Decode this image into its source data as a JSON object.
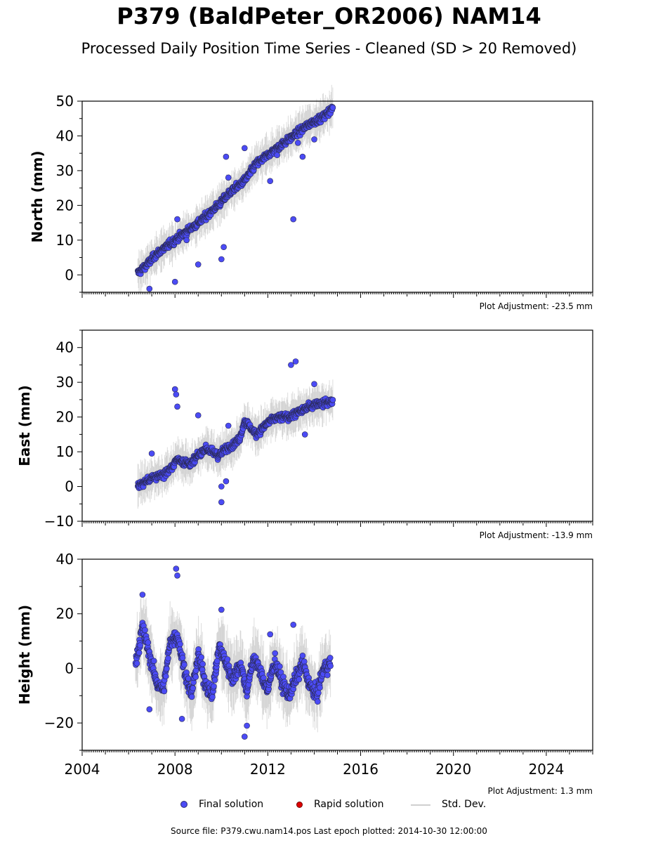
{
  "title": "P379 (BaldPeter_OR2006) NAM14",
  "subtitle": "Processed Daily Position Time Series - Cleaned (SD > 20 Removed)",
  "legend": {
    "final": "Final solution",
    "rapid": "Rapid solution",
    "std": "Std. Dev."
  },
  "source_line": "Source file: P379.cwu.nam14.pos  Last epoch plotted: 2014-10-30 12:00:00",
  "colors": {
    "final": "#4b4bf5",
    "rapid": "#e00000",
    "std": "#c8c8c8"
  },
  "chart_data": [
    {
      "type": "scatter",
      "ylabel": "North (mm)",
      "adjustment_label": "Plot Adjustment: -23.5 mm",
      "xlim": [
        2004,
        2026
      ],
      "ylim": [
        -5,
        50
      ],
      "yticks": [
        0,
        10,
        20,
        30,
        40,
        50
      ],
      "xticks": [
        2004,
        2008,
        2012,
        2016,
        2020,
        2024
      ],
      "series": [
        {
          "name": "Final solution",
          "x": [
            2006.4,
            2006.8,
            2007.2,
            2007.6,
            2008.0,
            2008.4,
            2008.8,
            2009.2,
            2009.6,
            2010.0,
            2010.4,
            2010.8,
            2011.1,
            2011.5,
            2011.9,
            2012.3,
            2012.7,
            2013.1,
            2013.5,
            2013.9,
            2014.3,
            2014.8
          ],
          "y": [
            0.5,
            3,
            6,
            8,
            10,
            12,
            14,
            16,
            18.5,
            21,
            24,
            26,
            28,
            32,
            34,
            36,
            38,
            40,
            42,
            44,
            45,
            48
          ]
        }
      ],
      "outliers": {
        "x": [
          2006.9,
          2008.0,
          2008.1,
          2008.5,
          2009.0,
          2010.0,
          2010.1,
          2010.2,
          2010.3,
          2011.0,
          2012.1,
          2012.4,
          2013.1,
          2013.3,
          2013.5,
          2014.0
        ],
        "y": [
          -4,
          -2,
          16,
          10,
          3,
          4.5,
          8,
          34,
          28,
          36.5,
          27,
          34.5,
          16,
          38,
          34,
          39
        ]
      }
    },
    {
      "type": "scatter",
      "ylabel": "East (mm)",
      "adjustment_label": "Plot Adjustment: -13.9 mm",
      "xlim": [
        2004,
        2026
      ],
      "ylim": [
        -10,
        45
      ],
      "yticks": [
        -10,
        0,
        10,
        20,
        30,
        40
      ],
      "xticks": [
        2004,
        2008,
        2012,
        2016,
        2020,
        2024
      ],
      "series": [
        {
          "name": "Final solution",
          "x": [
            2006.4,
            2006.6,
            2006.9,
            2007.2,
            2007.5,
            2007.8,
            2008.1,
            2008.4,
            2008.7,
            2009.0,
            2009.3,
            2009.6,
            2009.9,
            2010.2,
            2010.5,
            2010.8,
            2011.0,
            2011.5,
            2011.8,
            2012.1,
            2012.5,
            2012.9,
            2013.2,
            2013.5,
            2013.8,
            2014.1,
            2014.4,
            2014.8
          ],
          "y": [
            0,
            1,
            2,
            3,
            3.5,
            5,
            8,
            7,
            6.5,
            9,
            11,
            10,
            9,
            11,
            12,
            14,
            19,
            15,
            17,
            19,
            20,
            20,
            21,
            22,
            23,
            24,
            24,
            24.5
          ]
        }
      ],
      "outliers": {
        "x": [
          2007.0,
          2008.0,
          2008.05,
          2008.1,
          2009.0,
          2010.0,
          2010.0,
          2010.2,
          2010.3,
          2013.0,
          2013.2,
          2013.6,
          2014.0
        ],
        "y": [
          9.5,
          28,
          26.5,
          23,
          20.5,
          -4.5,
          0,
          1.5,
          17.5,
          35,
          36,
          15,
          29.5
        ]
      }
    },
    {
      "type": "scatter",
      "ylabel": "Height (mm)",
      "adjustment_label": "Plot Adjustment: 1.3 mm",
      "xlim": [
        2004,
        2026
      ],
      "ylim": [
        -30,
        40
      ],
      "yticks": [
        -20,
        0,
        20,
        40
      ],
      "xticks": [
        2004,
        2008,
        2012,
        2016,
        2020,
        2024
      ],
      "xticklabels": [
        "2004",
        "2008",
        "2012",
        "2016",
        "2020",
        "2024"
      ],
      "series": [
        {
          "name": "Final solution",
          "x": [
            2006.3,
            2006.6,
            2006.9,
            2007.2,
            2007.5,
            2007.8,
            2008.1,
            2008.4,
            2008.7,
            2009.0,
            2009.3,
            2009.6,
            2009.9,
            2010.2,
            2010.5,
            2010.8,
            2011.1,
            2011.4,
            2011.7,
            2012.0,
            2012.3,
            2012.6,
            2012.9,
            2013.2,
            2013.5,
            2013.8,
            2014.1,
            2014.4,
            2014.7
          ],
          "y": [
            2,
            15,
            5,
            -5,
            -8,
            10,
            12,
            0,
            -10,
            5,
            -5,
            -10,
            8,
            2,
            -4,
            2,
            -8,
            4,
            -2,
            -8,
            3,
            -5,
            -10,
            -4,
            2,
            -6,
            -10,
            0,
            2
          ]
        }
      ],
      "outliers": {
        "x": [
          2006.6,
          2006.9,
          2008.05,
          2008.1,
          2010.0,
          2011.0,
          2011.1,
          2012.1,
          2013.1,
          2008.3
        ],
        "y": [
          27,
          -15,
          36.5,
          34,
          21.5,
          -25,
          -21,
          12.5,
          16,
          -18.5
        ]
      }
    }
  ]
}
